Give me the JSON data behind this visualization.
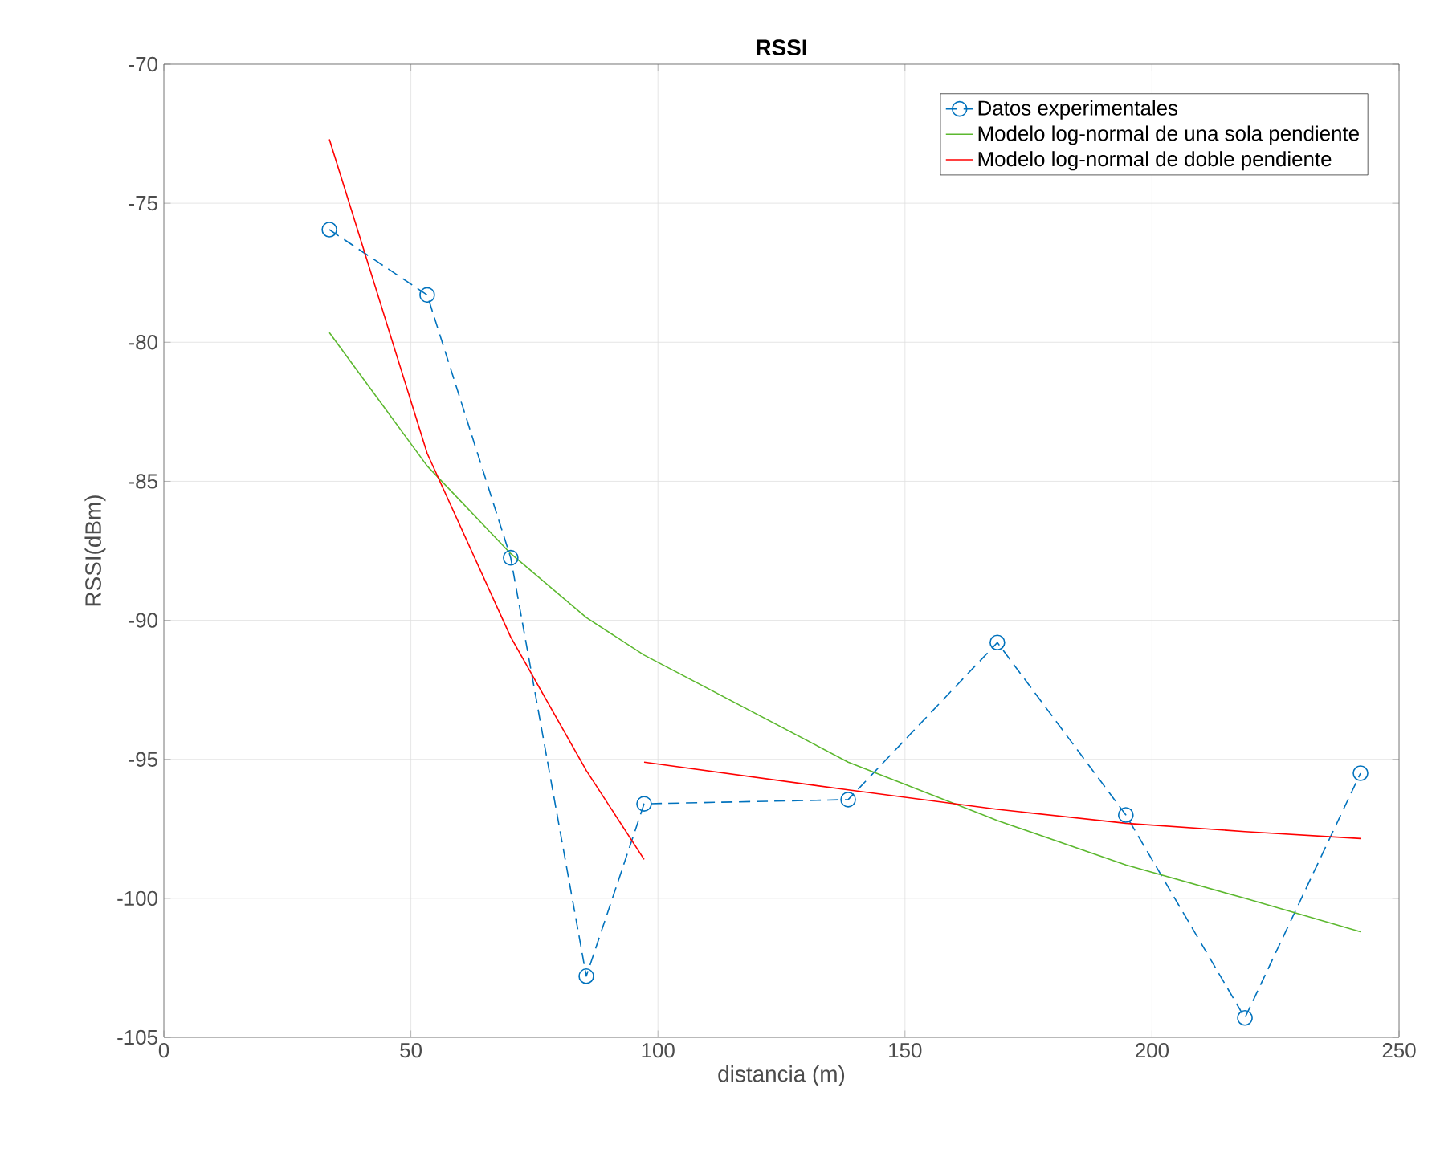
{
  "chart_data": {
    "type": "line",
    "title": "RSSI",
    "xlabel": "distancia (m)",
    "ylabel": "RSSI(dBm)",
    "xlim": [
      0,
      250
    ],
    "xticks": [
      0,
      50,
      100,
      150,
      200,
      250
    ],
    "ylim": [
      -105,
      -70
    ],
    "yticks": [
      -105,
      -100,
      -95,
      -90,
      -85,
      -80,
      -75,
      -70
    ],
    "grid": true,
    "legend": "top right",
    "series": [
      {
        "name": "Datos experimentales",
        "color": "#0072bd",
        "marker": "circle",
        "line_style": "dashed",
        "x": [
          33.5,
          53.3,
          70.2,
          85.5,
          97.2,
          138.5,
          168.7,
          194.7,
          218.8,
          242.2
        ],
        "values": [
          -75.95,
          -78.3,
          -87.75,
          -102.8,
          -96.6,
          -96.45,
          -90.8,
          -97.0,
          -104.3,
          -95.5
        ]
      },
      {
        "name": "Modelo log-normal de una sola pendiente",
        "color": "#5cb82f",
        "marker": "none",
        "line_style": "solid",
        "x": [
          33.5,
          53.3,
          70.2,
          85.5,
          97.2,
          138.5,
          168.7,
          194.7,
          218.8,
          242.2
        ],
        "values": [
          -79.65,
          -84.45,
          -87.6,
          -89.9,
          -91.25,
          -95.1,
          -97.2,
          -98.8,
          -100.0,
          -101.2
        ]
      },
      {
        "name": "Modelo log-normal de doble pendiente",
        "color": "#ff0000",
        "marker": "none",
        "line_style": "solid",
        "x": [
          33.5,
          53.3,
          70.2,
          85.5,
          97.2
        ],
        "values": [
          -72.7,
          -84.0,
          -90.6,
          -95.4,
          -98.6
        ]
      },
      {
        "color": "#ff0000",
        "marker": "none",
        "line_style": "solid",
        "x": [
          97.2,
          138.5,
          168.7,
          194.7,
          218.8,
          242.2
        ],
        "values": [
          -95.1,
          -96.1,
          -96.8,
          -97.3,
          -97.6,
          -97.85
        ]
      }
    ]
  }
}
